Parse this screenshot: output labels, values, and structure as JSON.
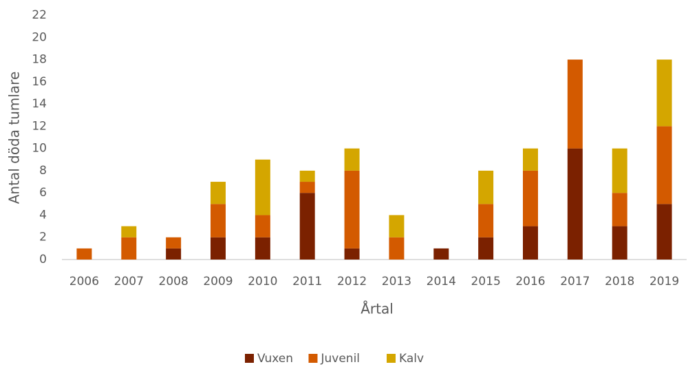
{
  "chart_data": {
    "type": "stacked_bar",
    "categories": [
      "2006",
      "2007",
      "2008",
      "2009",
      "2010",
      "2011",
      "2012",
      "2013",
      "2014",
      "2015",
      "2016",
      "2017",
      "2018",
      "2019"
    ],
    "series": [
      {
        "name": "Vuxen",
        "color": "#7b2100",
        "values": [
          0,
          0,
          1,
          2,
          2,
          6,
          1,
          0,
          1,
          2,
          3,
          10,
          3,
          5
        ]
      },
      {
        "name": "Juvenil",
        "color": "#d35a00",
        "values": [
          1,
          2,
          1,
          3,
          2,
          1,
          7,
          2,
          0,
          3,
          5,
          8,
          3,
          7
        ]
      },
      {
        "name": "Kalv",
        "color": "#d4a600",
        "values": [
          0,
          1,
          0,
          2,
          5,
          1,
          2,
          2,
          0,
          3,
          2,
          0,
          4,
          6
        ]
      }
    ],
    "xlabel": "Årtal",
    "ylabel": "Antal döda tumlare",
    "ylim": [
      0,
      22
    ],
    "yticks": [
      0,
      2,
      4,
      6,
      8,
      10,
      12,
      14,
      16,
      18,
      20,
      22
    ],
    "grid": false,
    "legend": "bottom"
  }
}
